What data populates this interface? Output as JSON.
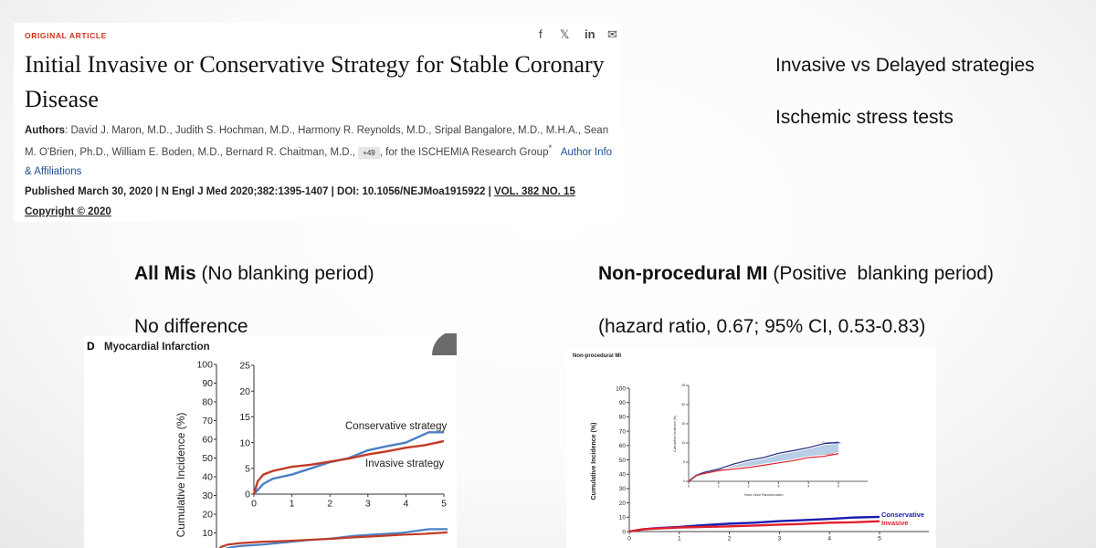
{
  "article": {
    "kicker": "ORIGINAL ARTICLE",
    "share_icons": [
      "facebook-icon",
      "x-icon",
      "linkedin-icon",
      "mail-icon"
    ],
    "share_glyphs": [
      "f",
      "𝕏",
      "in",
      "✉"
    ],
    "title": "Initial Invasive or Conservative Strategy for Stable Coronary Disease",
    "authors_label": "Authors",
    "authors": ": David J. Maron, M.D., Judith S. Hochman, M.D., Harmony R. Reynolds, M.D., Sripal Bangalore, M.D., M.H.A., Sean M. O'Brien, Ph.D., William E. Boden, M.D., Bernard R. Chaitman, M.D., ",
    "more_authors": "+49",
    "group": ", for the ISCHEMIA Research Group",
    "group_mark": "*",
    "affiliations_link": "Author Info & Affiliations",
    "published": "Published March 30, 2020 | N Engl J Med 2020;382:1395-1407 | DOI: 10.1056/NEJMoa1915922 | ",
    "volume": "VOL. 382 NO. 15",
    "copyright": "Copyright © 2020"
  },
  "notes": {
    "line1": "Invasive vs Delayed strategies",
    "line2": "Ischemic stress tests",
    "left_heading_bold": "All Mis",
    "left_heading_rest": " (No blanking period)",
    "left_sub": "No difference",
    "right_heading_bold": "Non-procedural MI",
    "right_heading_rest": " (Positive  blanking period)",
    "right_sub": "(hazard ratio, 0.67; 95% CI, 0.53-0.83)"
  },
  "colors": {
    "blue_left": "#4a80c4",
    "red_left": "#c23b26",
    "blue_right": "#1b1bb0",
    "red_right": "#e0202a",
    "band": "#b8cde6"
  },
  "chart_data": [
    {
      "type": "line",
      "panel_label": "D",
      "title": "Myocardial Infarction",
      "ylabel": "Cumulative Incidence (%)",
      "yticks": [
        "100",
        "90",
        "80",
        "70",
        "60",
        "50",
        "40",
        "30",
        "20",
        "10"
      ],
      "ylim": [
        0,
        100
      ],
      "inset": {
        "ylim": [
          0,
          25
        ],
        "yticks": [
          "25",
          "20",
          "15",
          "10",
          "5",
          "0"
        ],
        "xticks": [
          "0",
          "1",
          "2",
          "3",
          "4",
          "5"
        ],
        "xlim": [
          0,
          5
        ]
      },
      "series": [
        {
          "name": "Conservative strategy",
          "x": [
            0,
            0.25,
            0.5,
            1,
            1.5,
            2,
            2.5,
            3,
            3.5,
            4,
            4.3,
            4.6,
            5
          ],
          "y": [
            0,
            2,
            3,
            3.8,
            5,
            6.2,
            7,
            8.5,
            9.3,
            10,
            11,
            12,
            12
          ]
        },
        {
          "name": "Invasive strategy",
          "x": [
            0,
            0.1,
            0.25,
            0.5,
            1,
            1.5,
            2,
            2.5,
            3,
            3.5,
            4,
            4.5,
            5
          ],
          "y": [
            0,
            2.5,
            3.8,
            4.5,
            5.3,
            5.7,
            6.3,
            6.9,
            7.7,
            8.3,
            9,
            9.5,
            10.3
          ]
        }
      ]
    },
    {
      "type": "line",
      "title": "Non-procedural MI",
      "ylabel": "Cumulative Incidence (%)",
      "yticks": [
        "100",
        "90",
        "80",
        "70",
        "60",
        "50",
        "40",
        "30",
        "20",
        "10",
        "0"
      ],
      "xticks": [
        "0",
        "1",
        "2",
        "3",
        "4",
        "5"
      ],
      "ylim": [
        0,
        100
      ],
      "xlim": [
        0,
        5
      ],
      "inset": {
        "ylim": [
          0,
          25
        ],
        "yticks": [
          "25",
          "20",
          "15",
          "10",
          "5",
          "0"
        ],
        "xticks": [
          "0",
          "1",
          "2",
          "3",
          "4",
          "5"
        ],
        "xlabel": "Years Since Randomization",
        "ylabel": "Cumulative Incidence (%)"
      },
      "series": [
        {
          "name": "Conservative",
          "x": [
            0,
            0.25,
            0.5,
            1,
            1.5,
            2,
            2.5,
            3,
            3.5,
            4,
            4.5,
            5
          ],
          "y": [
            0,
            1.5,
            2.3,
            3.2,
            4.5,
            5.5,
            6.2,
            7.3,
            8,
            8.8,
            9.8,
            10.2
          ]
        },
        {
          "name": "Invasive",
          "x": [
            0,
            0.25,
            0.5,
            1,
            1.5,
            2,
            2.5,
            3,
            3.5,
            4,
            4.5,
            5
          ],
          "y": [
            0,
            1.5,
            2,
            2.8,
            3.2,
            3.6,
            4.2,
            4.8,
            5.4,
            6.2,
            6.5,
            7.2
          ]
        }
      ]
    }
  ]
}
